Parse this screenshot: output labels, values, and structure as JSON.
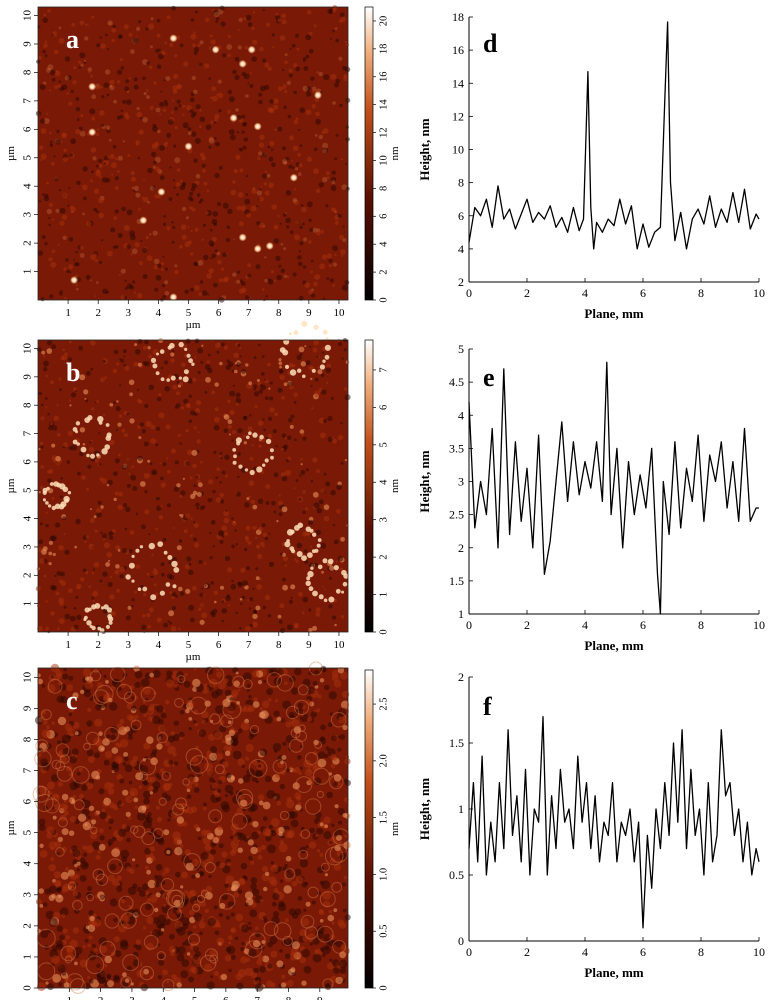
{
  "colors": {
    "afm_dark": "#2a0500",
    "afm_mid": "#7a1a06",
    "afm_light": "#ffe6c8",
    "line": "#000000"
  },
  "chart_data": [
    {
      "id": "a",
      "type": "heatmap",
      "panel_label": "a",
      "xlabel": "µm",
      "ylabel": "µm",
      "xlim": [
        0,
        10.3
      ],
      "ylim": [
        0,
        10.3
      ],
      "x_ticks": [
        "1",
        "2",
        "3",
        "4",
        "5",
        "6",
        "7",
        "8",
        "9",
        "10"
      ],
      "y_ticks": [
        "1",
        "2",
        "3",
        "4",
        "5",
        "6",
        "7",
        "8",
        "9",
        "10"
      ],
      "colorbar": {
        "label": "nm",
        "ticks": [
          "0",
          "2",
          "4",
          "6",
          "8",
          "10",
          "12",
          "14",
          "16",
          "18",
          "20"
        ],
        "range": [
          0,
          21
        ]
      },
      "features": {
        "kind": "sparse_peaks",
        "seed": 11,
        "spots": [
          [
            1.8,
            7.5
          ],
          [
            1.8,
            5.9
          ],
          [
            4.5,
            9.2
          ],
          [
            5.9,
            8.8
          ],
          [
            7.1,
            8.8
          ],
          [
            6.8,
            8.3
          ],
          [
            9.3,
            7.2
          ],
          [
            6.5,
            6.4
          ],
          [
            7.3,
            6.1
          ],
          [
            5.0,
            5.4
          ],
          [
            4.1,
            3.8
          ],
          [
            8.5,
            4.3
          ],
          [
            3.5,
            2.8
          ],
          [
            6.8,
            2.2
          ],
          [
            7.3,
            1.8
          ],
          [
            1.2,
            0.7
          ],
          [
            4.5,
            0.1
          ],
          [
            7.7,
            1.9
          ]
        ]
      }
    },
    {
      "id": "b",
      "type": "heatmap",
      "panel_label": "b",
      "xlabel": "µm",
      "ylabel": "µm",
      "xlim": [
        0,
        10.3
      ],
      "ylim": [
        0,
        10.3
      ],
      "x_ticks": [
        "1",
        "2",
        "3",
        "4",
        "5",
        "6",
        "7",
        "8",
        "9",
        "10"
      ],
      "y_ticks": [
        "1",
        "2",
        "3",
        "4",
        "5",
        "6",
        "7",
        "8",
        "9",
        "10"
      ],
      "colorbar": {
        "label": "nm",
        "ticks": [
          "0",
          "1",
          "2",
          "3",
          "4",
          "5",
          "6",
          "7"
        ],
        "range": [
          0,
          7.8
        ]
      },
      "features": {
        "kind": "rings",
        "seed": 23,
        "rings": [
          [
            4.5,
            9.5,
            0.6
          ],
          [
            8.9,
            9.9,
            0.8
          ],
          [
            1.8,
            6.9,
            0.6
          ],
          [
            7.1,
            6.3,
            0.6
          ],
          [
            0.6,
            4.8,
            0.4
          ],
          [
            8.8,
            3.2,
            0.5
          ],
          [
            3.8,
            2.2,
            0.8
          ],
          [
            9.6,
            1.8,
            0.6
          ],
          [
            2.0,
            0.5,
            0.4
          ]
        ]
      }
    },
    {
      "id": "c",
      "type": "heatmap",
      "panel_label": "c",
      "xlabel": "µm",
      "ylabel": "µm",
      "xlim": [
        0,
        9.9
      ],
      "ylim": [
        0,
        10.3
      ],
      "x_ticks": [
        "1",
        "2",
        "3",
        "4",
        "5",
        "6",
        "7",
        "8",
        "9"
      ],
      "y_ticks": [
        "0",
        "1",
        "2",
        "3",
        "4",
        "5",
        "6",
        "7",
        "8",
        "9",
        "10"
      ],
      "colorbar": {
        "label": "nm",
        "ticks": [
          "0",
          "0.5",
          "1.0",
          "1.5",
          "2.0",
          "2.5"
        ],
        "range": [
          0,
          2.8
        ]
      },
      "features": {
        "kind": "texture",
        "seed": 37
      }
    },
    {
      "id": "d",
      "type": "line",
      "panel_label": "d",
      "xlabel": "Plane, mm",
      "ylabel": "Height, nm",
      "xlim": [
        0,
        10
      ],
      "ylim": [
        2,
        18
      ],
      "x_ticks": [
        "0",
        "2",
        "4",
        "6",
        "8",
        "10"
      ],
      "y_ticks": [
        "2",
        "4",
        "6",
        "8",
        "10",
        "12",
        "14",
        "16",
        "18"
      ],
      "x": [
        0,
        0.2,
        0.4,
        0.6,
        0.8,
        1.0,
        1.2,
        1.4,
        1.6,
        1.8,
        2.0,
        2.2,
        2.4,
        2.6,
        2.8,
        3.0,
        3.2,
        3.4,
        3.6,
        3.8,
        3.95,
        4.1,
        4.2,
        4.3,
        4.4,
        4.6,
        4.8,
        5.0,
        5.2,
        5.4,
        5.6,
        5.8,
        6.0,
        6.2,
        6.4,
        6.6,
        6.75,
        6.85,
        6.95,
        7.1,
        7.3,
        7.5,
        7.7,
        7.9,
        8.1,
        8.3,
        8.5,
        8.7,
        8.9,
        9.1,
        9.3,
        9.5,
        9.7,
        9.9,
        10.0
      ],
      "values": [
        4.4,
        6.5,
        6.0,
        7.0,
        5.3,
        7.8,
        5.8,
        6.4,
        5.2,
        6.1,
        7.0,
        5.6,
        6.2,
        5.8,
        6.6,
        5.3,
        5.9,
        5.0,
        6.5,
        5.1,
        5.8,
        14.7,
        6.5,
        4.0,
        5.6,
        5.0,
        5.8,
        5.4,
        7.0,
        5.5,
        6.6,
        4.0,
        5.5,
        4.1,
        5.0,
        5.3,
        13.0,
        17.7,
        8.0,
        4.5,
        6.2,
        4.0,
        5.8,
        6.4,
        5.5,
        7.2,
        5.3,
        6.4,
        5.6,
        7.4,
        5.6,
        7.6,
        5.2,
        6.1,
        5.8
      ]
    },
    {
      "id": "e",
      "type": "line",
      "panel_label": "e",
      "xlabel": "Plane, mm",
      "ylabel": "Height, nm",
      "xlim": [
        0,
        10
      ],
      "ylim": [
        1,
        5
      ],
      "x_ticks": [
        "0",
        "2",
        "4",
        "6",
        "8",
        "10"
      ],
      "y_ticks": [
        "1",
        "1.5",
        "2",
        "2.5",
        "3",
        "3.5",
        "4",
        "4.5",
        "5"
      ],
      "x": [
        0,
        0.2,
        0.4,
        0.6,
        0.8,
        1.0,
        1.2,
        1.4,
        1.6,
        1.8,
        2.0,
        2.2,
        2.4,
        2.6,
        2.8,
        3.0,
        3.2,
        3.4,
        3.6,
        3.8,
        4.0,
        4.2,
        4.4,
        4.6,
        4.75,
        4.9,
        5.1,
        5.3,
        5.5,
        5.7,
        5.9,
        6.1,
        6.3,
        6.5,
        6.6,
        6.7,
        6.9,
        7.1,
        7.3,
        7.5,
        7.7,
        7.9,
        8.1,
        8.3,
        8.5,
        8.7,
        8.9,
        9.1,
        9.3,
        9.5,
        9.7,
        9.9,
        10.0
      ],
      "values": [
        4.2,
        2.3,
        3.0,
        2.5,
        3.8,
        2.0,
        4.7,
        2.2,
        3.6,
        2.4,
        3.2,
        2.0,
        3.7,
        1.6,
        2.1,
        3.0,
        3.9,
        2.7,
        3.6,
        2.8,
        3.3,
        2.9,
        3.6,
        2.7,
        4.8,
        2.5,
        3.5,
        2.0,
        3.3,
        2.5,
        3.1,
        2.6,
        3.5,
        1.6,
        1.0,
        3.0,
        2.2,
        3.6,
        2.3,
        3.2,
        2.7,
        3.7,
        2.4,
        3.4,
        3.0,
        3.6,
        2.6,
        3.3,
        2.4,
        3.8,
        2.4,
        2.6,
        2.6
      ]
    },
    {
      "id": "f",
      "type": "line",
      "panel_label": "f",
      "xlabel": "Plane, mm",
      "ylabel": "Height, nm",
      "xlim": [
        0,
        10
      ],
      "ylim": [
        0,
        2
      ],
      "x_ticks": [
        "0",
        "2",
        "4",
        "6",
        "8",
        "10"
      ],
      "y_ticks": [
        "0",
        "0.5",
        "1",
        "1.5",
        "2"
      ],
      "x": [
        0,
        0.15,
        0.3,
        0.45,
        0.6,
        0.75,
        0.9,
        1.05,
        1.2,
        1.35,
        1.5,
        1.65,
        1.8,
        1.95,
        2.1,
        2.25,
        2.4,
        2.55,
        2.7,
        2.85,
        3.0,
        3.15,
        3.3,
        3.45,
        3.6,
        3.75,
        3.9,
        4.05,
        4.2,
        4.35,
        4.5,
        4.65,
        4.8,
        4.95,
        5.1,
        5.25,
        5.4,
        5.55,
        5.7,
        5.85,
        6.0,
        6.15,
        6.3,
        6.45,
        6.6,
        6.75,
        6.9,
        7.05,
        7.2,
        7.35,
        7.5,
        7.65,
        7.8,
        7.95,
        8.1,
        8.25,
        8.4,
        8.55,
        8.7,
        8.85,
        9.0,
        9.15,
        9.3,
        9.45,
        9.6,
        9.75,
        9.9,
        10.0
      ],
      "values": [
        0.7,
        1.2,
        0.6,
        1.4,
        0.5,
        0.9,
        0.6,
        1.2,
        0.7,
        1.6,
        0.8,
        1.1,
        0.6,
        1.3,
        0.5,
        1.0,
        0.9,
        1.7,
        0.5,
        1.1,
        0.7,
        1.3,
        0.9,
        1.0,
        0.7,
        1.4,
        0.9,
        1.2,
        0.7,
        1.1,
        0.6,
        0.9,
        0.8,
        1.2,
        0.6,
        0.9,
        0.8,
        1.0,
        0.6,
        0.9,
        0.1,
        0.8,
        0.4,
        1.0,
        0.7,
        1.2,
        0.8,
        1.5,
        0.9,
        1.6,
        0.7,
        1.3,
        0.8,
        1.0,
        0.5,
        1.2,
        0.6,
        0.8,
        1.6,
        1.1,
        1.2,
        0.8,
        1.0,
        0.6,
        0.9,
        0.5,
        0.7,
        0.6
      ]
    }
  ]
}
